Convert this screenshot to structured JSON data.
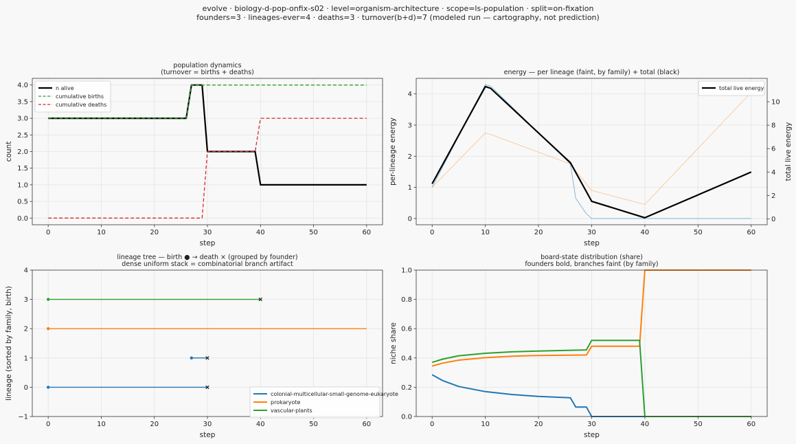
{
  "figure": {
    "suptitle_line1": "evolve · biology-d-pop-onfix-s02 · level=organism-architecture · scope=ls-population · split=on-fixation",
    "suptitle_line2": "founders=3 · lineages-ever=4 · deaths=3 · turnover(b+d)=7   (modeled run — cartography, not prediction)"
  },
  "colors": {
    "black": "#000000",
    "blue": "#1f77b4",
    "orange": "#ff7f0e",
    "green": "#2ca02c",
    "red": "#d62728",
    "grid": "#e4e4e4"
  },
  "chart_data": [
    {
      "id": "population",
      "type": "line",
      "title": "population dynamics",
      "subtitle": "(turnover = births + deaths)",
      "xlabel": "step",
      "ylabel": "count",
      "xlim": [
        -3,
        63
      ],
      "ylim": [
        -0.2,
        4.2
      ],
      "xticks": [
        0,
        10,
        20,
        30,
        40,
        50,
        60
      ],
      "yticks": [
        0.0,
        0.5,
        1.0,
        1.5,
        2.0,
        2.5,
        3.0,
        3.5,
        4.0
      ],
      "ytick_labels": [
        "0.0",
        "0.5",
        "1.0",
        "1.5",
        "2.0",
        "2.5",
        "3.0",
        "3.5",
        "4.0"
      ],
      "grid": true,
      "legend_position": "top-left",
      "series": [
        {
          "name": "n alive",
          "color": "#000000",
          "style": "solid",
          "width": 2.2,
          "x": [
            0,
            26,
            27,
            29,
            30,
            39,
            40,
            60
          ],
          "y": [
            3,
            3,
            4,
            4,
            2,
            2,
            1,
            1
          ]
        },
        {
          "name": "cumulative births",
          "color": "#2ca02c",
          "style": "dashed",
          "width": 1.3,
          "x": [
            0,
            26,
            27,
            60
          ],
          "y": [
            3,
            3,
            4,
            4
          ]
        },
        {
          "name": "cumulative deaths",
          "color": "#d62728",
          "style": "dashed",
          "width": 1.3,
          "x": [
            0,
            29,
            30,
            39,
            40,
            60
          ],
          "y": [
            0,
            0,
            2,
            2,
            3,
            3
          ]
        }
      ]
    },
    {
      "id": "energy",
      "type": "line",
      "title": "energy — per lineage (faint, by family) + total (black)",
      "xlabel": "step",
      "ylabel": "per-lineage energy",
      "ylabel_right": "total live energy",
      "xlim": [
        -3,
        63
      ],
      "ylim": [
        -0.2,
        4.5
      ],
      "ylim_right": [
        -0.5,
        12
      ],
      "xticks": [
        0,
        10,
        20,
        30,
        40,
        50,
        60
      ],
      "yticks": [
        0,
        1,
        2,
        3,
        4
      ],
      "yticks_right": [
        0,
        2,
        4,
        6,
        8,
        10
      ],
      "grid": true,
      "legend_position": "top-right",
      "series": [
        {
          "name": "",
          "axis": "left",
          "color": "#1f77b4",
          "style": "solid",
          "width": 0.9,
          "opacity": 0.55,
          "x": [
            0,
            10,
            11,
            26,
            27,
            29,
            30,
            40,
            60
          ],
          "y": [
            1.0,
            4.3,
            4.25,
            1.75,
            0.65,
            0.15,
            0.0,
            0.0,
            0.0
          ]
        },
        {
          "name": "",
          "axis": "left",
          "color": "#ff7f0e",
          "style": "solid",
          "width": 0.8,
          "opacity": 0.45,
          "x": [
            0,
            10,
            11,
            26,
            30,
            40,
            60
          ],
          "y": [
            1.0,
            2.75,
            2.7,
            1.75,
            0.9,
            0.45,
            4.05
          ]
        },
        {
          "name": "total live energy",
          "axis": "right",
          "color": "#000000",
          "style": "solid",
          "width": 2.2,
          "x": [
            0,
            10,
            11,
            26,
            30,
            40,
            60
          ],
          "y": [
            3.0,
            11.3,
            11.15,
            4.8,
            1.5,
            0.1,
            4.0
          ]
        }
      ]
    },
    {
      "id": "lineage-tree",
      "type": "line",
      "title": "lineage tree — birth ● → death ×  (grouped by founder)",
      "subtitle": "dense uniform stack = combinatorial branch artifact",
      "xlabel": "step",
      "ylabel": "lineage (sorted by family, birth)",
      "xlim": [
        -3,
        63
      ],
      "ylim": [
        -1,
        4
      ],
      "xticks": [
        0,
        10,
        20,
        30,
        40,
        50,
        60
      ],
      "yticks": [
        -1,
        0,
        1,
        2,
        3,
        4
      ],
      "ytick_labels": [
        "−1",
        "0",
        "1",
        "2",
        "3",
        "4"
      ],
      "grid": true,
      "legend_position": "bottom-right",
      "legend": [
        {
          "name": "colonial-multicellular-small-genome-eukaryote",
          "color": "#1f77b4"
        },
        {
          "name": "prokaryote",
          "color": "#ff7f0e"
        },
        {
          "name": "vascular-plants",
          "color": "#2ca02c"
        }
      ],
      "lineages": [
        {
          "y": 0,
          "birth": 0,
          "death": 30,
          "color": "#1f77b4"
        },
        {
          "y": 1,
          "birth": 27,
          "death": 30,
          "color": "#1f77b4"
        },
        {
          "y": 2,
          "birth": 0,
          "death": null,
          "end": 60,
          "color": "#ff7f0e"
        },
        {
          "y": 3,
          "birth": 0,
          "death": 40,
          "color": "#2ca02c"
        }
      ]
    },
    {
      "id": "board-state",
      "type": "line",
      "title": "board-state distribution (share)",
      "subtitle": "founders bold, branches faint (by family)",
      "xlabel": "step",
      "ylabel": "niche share",
      "xlim": [
        -3,
        63
      ],
      "ylim": [
        0,
        1
      ],
      "xticks": [
        0,
        10,
        20,
        30,
        40,
        50,
        60
      ],
      "yticks": [
        0.0,
        0.2,
        0.4,
        0.6,
        0.8,
        1.0
      ],
      "ytick_labels": [
        "0.0",
        "0.2",
        "0.4",
        "0.6",
        "0.8",
        "1.0"
      ],
      "grid": true,
      "series": [
        {
          "name": "",
          "color": "#1f77b4",
          "style": "solid",
          "width": 2,
          "x": [
            0,
            2,
            5,
            10,
            15,
            20,
            26,
            27,
            29,
            30,
            60
          ],
          "y": [
            0.285,
            0.245,
            0.205,
            0.17,
            0.15,
            0.137,
            0.128,
            0.065,
            0.065,
            0.0,
            0.0
          ]
        },
        {
          "name": "",
          "color": "#ff7f0e",
          "style": "solid",
          "width": 2,
          "x": [
            0,
            2,
            5,
            10,
            15,
            20,
            29,
            30,
            39,
            40,
            60
          ],
          "y": [
            0.345,
            0.365,
            0.385,
            0.402,
            0.412,
            0.417,
            0.42,
            0.48,
            0.48,
            1.0,
            1.0
          ]
        },
        {
          "name": "",
          "color": "#2ca02c",
          "style": "solid",
          "width": 2,
          "x": [
            0,
            2,
            5,
            10,
            15,
            20,
            29,
            30,
            39,
            40,
            60
          ],
          "y": [
            0.37,
            0.392,
            0.415,
            0.432,
            0.442,
            0.447,
            0.455,
            0.52,
            0.52,
            0.0,
            0.0
          ]
        },
        {
          "name": "",
          "color": "#1f77b4",
          "style": "solid",
          "width": 0.9,
          "opacity": 0.6,
          "x": [
            27,
            29,
            30
          ],
          "y": [
            0.065,
            0.065,
            0.0
          ]
        }
      ]
    }
  ]
}
